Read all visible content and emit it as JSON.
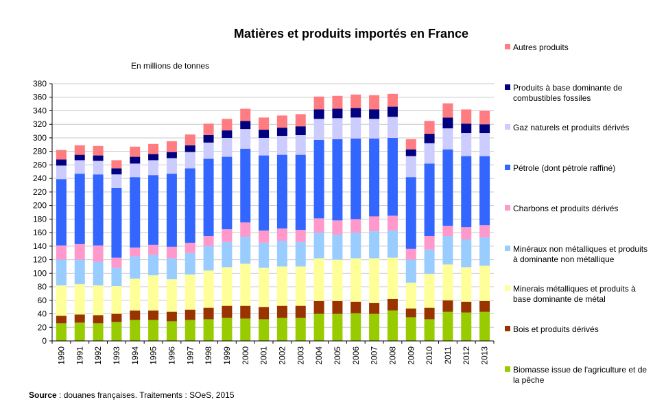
{
  "chart_data": {
    "type": "bar",
    "stacked": true,
    "title": "Matières et produits importés en France",
    "ylabel": "En millions de tonnes",
    "ylim": [
      0,
      380
    ],
    "yticks": [
      0,
      20,
      40,
      60,
      80,
      100,
      120,
      140,
      160,
      180,
      200,
      220,
      240,
      260,
      280,
      300,
      320,
      340,
      360,
      380
    ],
    "grid": true,
    "legend_position": "right",
    "categories": [
      "1990",
      "1991",
      "1992",
      "1993",
      "1994",
      "1995",
      "1996",
      "1997",
      "1998",
      "1999",
      "2000",
      "2001",
      "2002",
      "2003",
      "2004",
      "2005",
      "2006",
      "2007",
      "2008",
      "2009",
      "2010",
      "2011",
      "2012",
      "2013"
    ],
    "series": [
      {
        "name": "Biomasse issue de l'agriculture et de la pêche",
        "color": "#99cc00",
        "values": [
          26,
          27,
          26,
          28,
          31,
          31,
          29,
          31,
          32,
          34,
          33,
          32,
          34,
          34,
          40,
          40,
          41,
          40,
          45,
          35,
          32,
          43,
          42,
          43
        ]
      },
      {
        "name": "Bois et produits dérivés",
        "color": "#993300",
        "values": [
          11,
          12,
          12,
          12,
          14,
          14,
          14,
          15,
          17,
          18,
          19,
          18,
          18,
          18,
          19,
          19,
          17,
          16,
          17,
          13,
          17,
          17,
          16,
          16
        ]
      },
      {
        "name": "Minerais métalliques et produits à base dominante de métal",
        "color": "#ffff99",
        "values": [
          45,
          45,
          44,
          41,
          47,
          52,
          48,
          52,
          55,
          57,
          62,
          58,
          58,
          58,
          63,
          61,
          64,
          66,
          61,
          38,
          50,
          53,
          51,
          52
        ]
      },
      {
        "name": "Minéraux non métalliques et produits à dominante non métallique",
        "color": "#99ccff",
        "values": [
          38,
          36,
          35,
          27,
          33,
          30,
          31,
          32,
          36,
          37,
          40,
          37,
          38,
          36,
          38,
          37,
          38,
          40,
          40,
          34,
          36,
          42,
          41,
          42
        ]
      },
      {
        "name": "Charbons et produits dérivés",
        "color": "#ff99cc",
        "values": [
          21,
          23,
          24,
          15,
          13,
          15,
          17,
          15,
          15,
          19,
          21,
          18,
          18,
          18,
          21,
          21,
          20,
          22,
          22,
          16,
          20,
          15,
          18,
          18
        ]
      },
      {
        "name": "Pétrole (dont pétrole raffiné)",
        "color": "#3366ff",
        "values": [
          98,
          104,
          105,
          103,
          104,
          103,
          108,
          110,
          114,
          107,
          109,
          111,
          109,
          111,
          116,
          120,
          119,
          115,
          115,
          106,
          107,
          113,
          105,
          102
        ]
      },
      {
        "name": "Gaz naturels et produits dérivés",
        "color": "#ccccff",
        "values": [
          20,
          20,
          20,
          20,
          20,
          22,
          23,
          24,
          24,
          28,
          29,
          26,
          28,
          29,
          31,
          31,
          31,
          29,
          31,
          31,
          30,
          31,
          34,
          34
        ]
      },
      {
        "name": "Produits à base dominante de combustibles fossiles",
        "color": "#000080",
        "values": [
          9,
          8,
          8,
          9,
          10,
          9,
          9,
          10,
          11,
          11,
          12,
          12,
          12,
          13,
          14,
          14,
          14,
          14,
          15,
          10,
          14,
          16,
          14,
          13
        ]
      },
      {
        "name": "Autres produits",
        "color": "#ff7c80",
        "values": [
          14,
          14,
          14,
          12,
          15,
          15,
          16,
          16,
          17,
          17,
          18,
          18,
          18,
          18,
          19,
          19,
          20,
          21,
          19,
          15,
          19,
          21,
          21,
          20
        ]
      }
    ]
  },
  "source": {
    "label": "Source",
    "text": " : douanes françaises.  Traitements : SOeS, 2015"
  }
}
